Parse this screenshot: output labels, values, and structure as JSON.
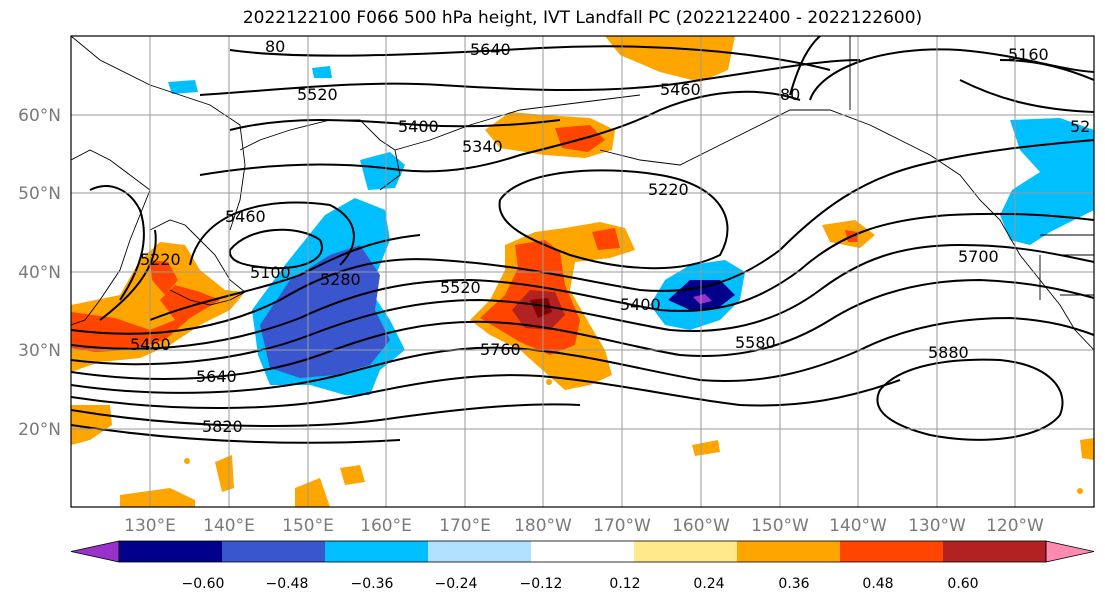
{
  "title": "2022122100 F066 500 hPa height, IVT Landfall PC (2022122400 - 2022122600)",
  "latitude_labels": [
    "60°N",
    "50°N",
    "40°N",
    "30°N",
    "20°N"
  ],
  "longitude_labels": [
    "130°E",
    "140°E",
    "150°E",
    "160°E",
    "170°E",
    "180°W",
    "170°W",
    "160°W",
    "150°W",
    "140°W",
    "130°W",
    "120°W"
  ],
  "contour_labels": [
    "5640",
    "5520",
    "5460",
    "5400",
    "5340",
    "5220",
    "5460",
    "5100",
    "5280",
    "5520",
    "5400",
    "5580",
    "5700",
    "5880",
    "5760",
    "5640",
    "5460",
    "5820",
    "5220",
    "5160",
    "52",
    "80",
    "80"
  ],
  "colorbar": {
    "levels": [
      "−0.60",
      "−0.48",
      "−0.36",
      "−0.24",
      "−0.12",
      "0.12",
      "0.24",
      "0.36",
      "0.48",
      "0.60"
    ],
    "colors": [
      "#9932cc",
      "#00008b",
      "#3a56cf",
      "#00bfff",
      "#b0e0ff",
      "#ffffff",
      "#ffe98a",
      "#ffa500",
      "#ff4500",
      "#b22222",
      "#ff89b0"
    ]
  },
  "field_colors": {
    "neg_light": "#00bfff",
    "neg_mid": "#3a56cf",
    "neg_dark": "#00008b",
    "neg_extreme": "#9932cc",
    "pos_light": "#ffa500",
    "pos_mid": "#ff4500",
    "pos_dark": "#b22222",
    "pos_pale": "#ffe98a"
  }
}
